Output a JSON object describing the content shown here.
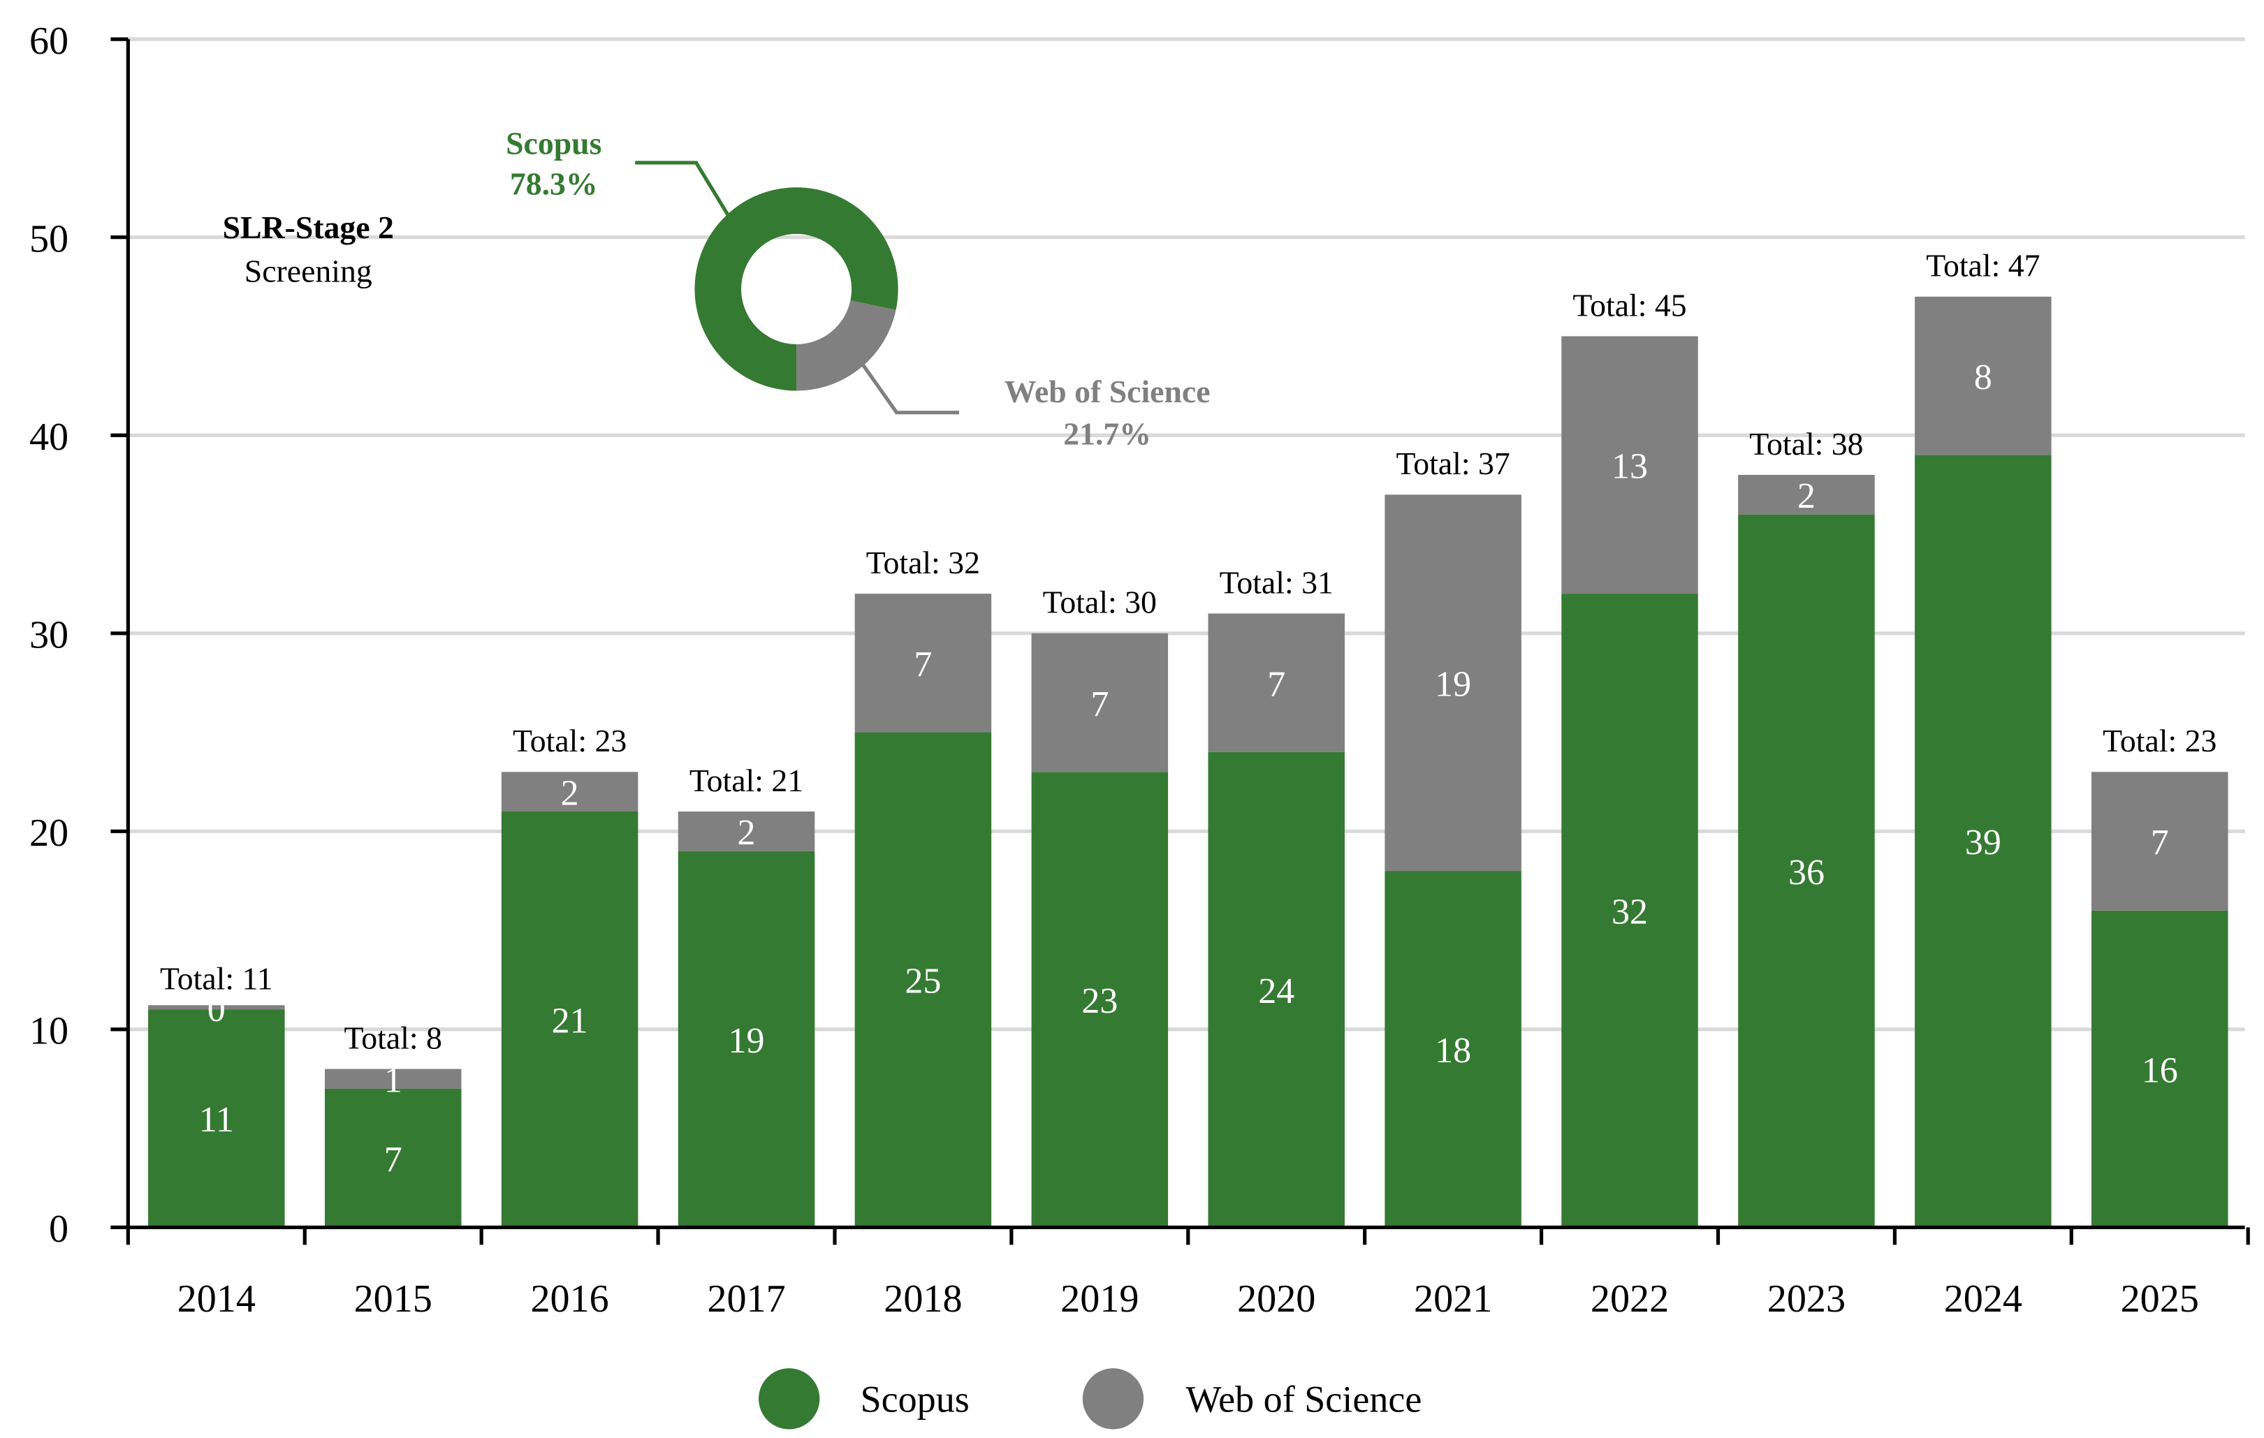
{
  "chart_data": {
    "type": "bar",
    "stacked": true,
    "categories": [
      "2014",
      "2015",
      "2016",
      "2017",
      "2018",
      "2019",
      "2020",
      "2021",
      "2022",
      "2023",
      "2024",
      "2025"
    ],
    "series": [
      {
        "name": "Scopus",
        "color": "#357a32",
        "values": [
          11,
          7,
          21,
          19,
          25,
          23,
          24,
          18,
          32,
          36,
          39,
          16
        ]
      },
      {
        "name": "Web of Science",
        "color": "#808080",
        "values": [
          0,
          1,
          2,
          2,
          7,
          7,
          7,
          19,
          13,
          2,
          8,
          7
        ]
      }
    ],
    "total_labels": [
      "Total: 11",
      "Total: 8",
      "Total: 23",
      "Total: 21",
      "Total: 32",
      "Total: 30",
      "Total: 31",
      "Total: 37",
      "Total: 45",
      "Total: 38",
      "Total: 47",
      "Total: 23"
    ],
    "ylim": [
      0,
      60
    ],
    "yticks": [
      "0",
      "10",
      "20",
      "30",
      "40",
      "50",
      "60"
    ],
    "grid": true,
    "legend": {
      "placement": "bottom-center",
      "items": [
        "Scopus",
        "Web of Science"
      ]
    },
    "annotation": {
      "title": "SLR-Stage 2",
      "subtitle": "Screening"
    },
    "inset_donut": {
      "type": "pie",
      "slices": [
        {
          "name": "Scopus",
          "percent": 78.3,
          "label": "78.3%",
          "color": "#357a32"
        },
        {
          "name": "Web of Science",
          "percent": 21.7,
          "label": "21.7%",
          "color": "#808080"
        }
      ]
    }
  }
}
